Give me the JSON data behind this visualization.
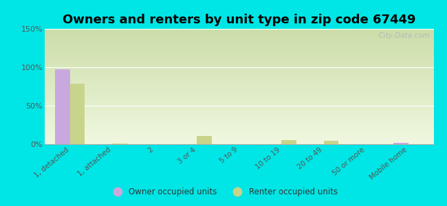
{
  "title": "Owners and renters by unit type in zip code 67449",
  "categories": [
    "1, detached",
    "1, attached",
    "2",
    "3 or 4",
    "5 to 9",
    "10 to 19",
    "20 to 49",
    "50 or more",
    "Mobile home"
  ],
  "owner_values": [
    97,
    0,
    0,
    0,
    0,
    0,
    0,
    0,
    1.5
  ],
  "renter_values": [
    79,
    1,
    0,
    11,
    0,
    5,
    4.5,
    0,
    0
  ],
  "owner_color": "#c9a8e0",
  "renter_color": "#c8d48a",
  "background_color": "#00e5e5",
  "ylim": [
    0,
    150
  ],
  "yticks": [
    0,
    50,
    100,
    150
  ],
  "ytick_labels": [
    "0%",
    "50%",
    "100%",
    "150%"
  ],
  "bar_width": 0.35,
  "title_fontsize": 13,
  "legend_owner": "Owner occupied units",
  "legend_renter": "Renter occupied units",
  "watermark": "  City-Data.com"
}
